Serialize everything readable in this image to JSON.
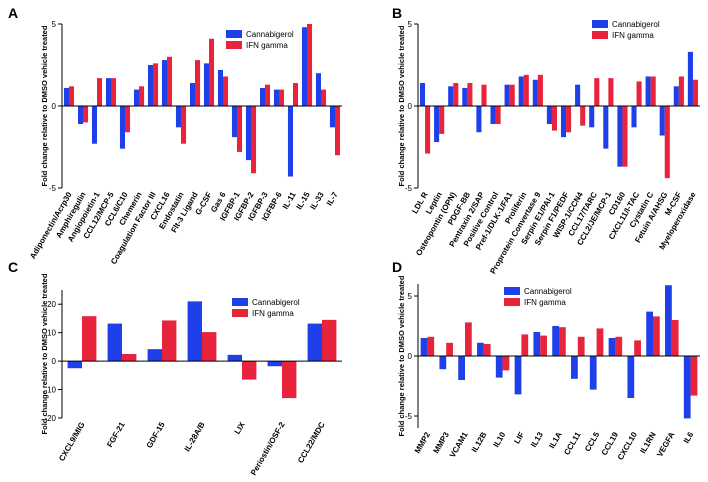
{
  "colors": {
    "cannabigerol": "#1f3fe8",
    "ifn_gamma": "#e8243c"
  },
  "chart_data": [
    {
      "type": "bar",
      "panel": "A",
      "ylabel": "Fold change relative to DMSO vehicle treated",
      "ylim": [
        -5,
        5
      ],
      "yticks": [
        -5,
        0,
        5
      ],
      "legend": {
        "position": "top-right",
        "entries": [
          "Cannabigerol",
          "IFN gamma"
        ]
      },
      "categories": [
        "Adiponectin/Acrp30",
        "Amphiregulin",
        "Angiopoietin-1",
        "CCL12/MCP-5",
        "CCL6/C10",
        "Chemerin",
        "Coagulation Factor III",
        "CXCL16",
        "Endostatin",
        "Flt-3 Ligand",
        "G-CSF",
        "Gas 6",
        "IGFBP-1",
        "IGFBP-2",
        "IGFBP-3",
        "IGFBP-6",
        "IL-11",
        "IL-15",
        "IL-33",
        "IL-7"
      ],
      "series": [
        {
          "name": "Cannabigerol",
          "values": [
            1.1,
            -1.1,
            -2.3,
            1.7,
            -2.6,
            1.0,
            2.5,
            2.8,
            -1.3,
            1.4,
            2.6,
            2.2,
            -1.9,
            -3.3,
            1.1,
            1.0,
            -4.3,
            4.8,
            2.0,
            -1.3
          ]
        },
        {
          "name": "IFN gamma",
          "values": [
            1.2,
            -1.0,
            1.7,
            1.7,
            -1.6,
            1.2,
            2.6,
            3.0,
            -2.3,
            2.8,
            4.1,
            1.8,
            -2.8,
            -4.1,
            1.3,
            1.0,
            1.4,
            5.0,
            1.0,
            -3.0
          ]
        }
      ]
    },
    {
      "type": "bar",
      "panel": "B",
      "ylabel": "Fold change relative to DMSO vehicle treated",
      "ylim": [
        -5,
        5
      ],
      "yticks": [
        -5,
        0,
        5
      ],
      "legend": {
        "position": "top-right",
        "entries": [
          "Cannabigerol",
          "IFN gamma"
        ]
      },
      "categories": [
        "LDL R",
        "Leptin",
        "Osteopontin (OPN)",
        "PDGF-BB",
        "Pentraxin 2/SAP",
        "Positive Control",
        "Pref-1/DLK-1/FA1",
        "Proliferin",
        "Proprotein Convertase 9",
        "Serpin E1/PAI-1",
        "Serpin F1/PEDF",
        "WISP-1/CCN4",
        "CCL17/TARC",
        "CCL2/JE/MCP-1",
        "CD160",
        "CXCL11/I-TAC",
        "Cystatin C",
        "Fetuin A/AHSG",
        "M-CSF",
        "Myeloperoxidase"
      ],
      "series": [
        {
          "name": "Cannabigerol",
          "values": [
            1.4,
            -2.2,
            1.2,
            1.1,
            -1.6,
            -1.1,
            1.3,
            1.8,
            1.6,
            -1.1,
            -1.9,
            1.3,
            -1.3,
            -2.6,
            -3.7,
            -1.3,
            1.8,
            -1.8,
            1.2,
            3.3
          ]
        },
        {
          "name": "IFN gamma",
          "values": [
            -2.9,
            -1.7,
            1.4,
            1.4,
            1.3,
            -1.1,
            1.3,
            1.9,
            1.9,
            -1.5,
            -1.6,
            -1.2,
            1.7,
            1.7,
            -3.7,
            1.5,
            1.8,
            -4.4,
            1.8,
            1.6
          ]
        }
      ]
    },
    {
      "type": "bar",
      "panel": "C",
      "ylabel": "Fold change relative to DMSO vehicle treated",
      "ylim": [
        -20,
        25
      ],
      "yticks": [
        -20,
        -10,
        0,
        10,
        20
      ],
      "legend": {
        "position": "top-right",
        "entries": [
          "Cannabigerol",
          "IFN gamma"
        ]
      },
      "categories": [
        "CXCL9/MIG",
        "FGF-21",
        "GDF-15",
        "IL-28A/B",
        "LIX",
        "Periostin/OSF-2",
        "CCL22/MDC"
      ],
      "series": [
        {
          "name": "Cannabigerol",
          "values": [
            -2.5,
            13.2,
            4.2,
            21.0,
            2.2,
            -1.8,
            13.2
          ]
        },
        {
          "name": "IFN gamma",
          "values": [
            15.8,
            2.5,
            14.3,
            10.2,
            -6.5,
            -13.0,
            14.5
          ]
        }
      ]
    },
    {
      "type": "bar",
      "panel": "D",
      "ylabel": "Fold change relative to DMSO vehicle treated",
      "ylim": [
        -6,
        6
      ],
      "yticks": [
        -5,
        0,
        5
      ],
      "legend": {
        "position": "top-left",
        "entries": [
          "Cannabigerol",
          "IFN gamma"
        ]
      },
      "categories": [
        "MMP2",
        "MMP3",
        "VCAM1",
        "IL12B",
        "IL10",
        "LIF",
        "IL13",
        "IL1A",
        "CCL11",
        "CCL5",
        "CCL19",
        "CXCL10",
        "IL1RN",
        "VEGFA",
        "IL6"
      ],
      "series": [
        {
          "name": "Cannabigerol",
          "values": [
            1.5,
            -1.1,
            -2.0,
            1.1,
            -1.8,
            -3.2,
            2.0,
            2.5,
            -1.9,
            -2.8,
            1.5,
            -3.5,
            3.7,
            5.9,
            -5.2
          ]
        },
        {
          "name": "IFN gamma",
          "values": [
            1.6,
            1.1,
            2.8,
            1.0,
            -1.2,
            1.8,
            1.7,
            2.4,
            1.6,
            2.3,
            1.6,
            1.3,
            3.3,
            3.0,
            -3.3
          ]
        }
      ]
    }
  ]
}
